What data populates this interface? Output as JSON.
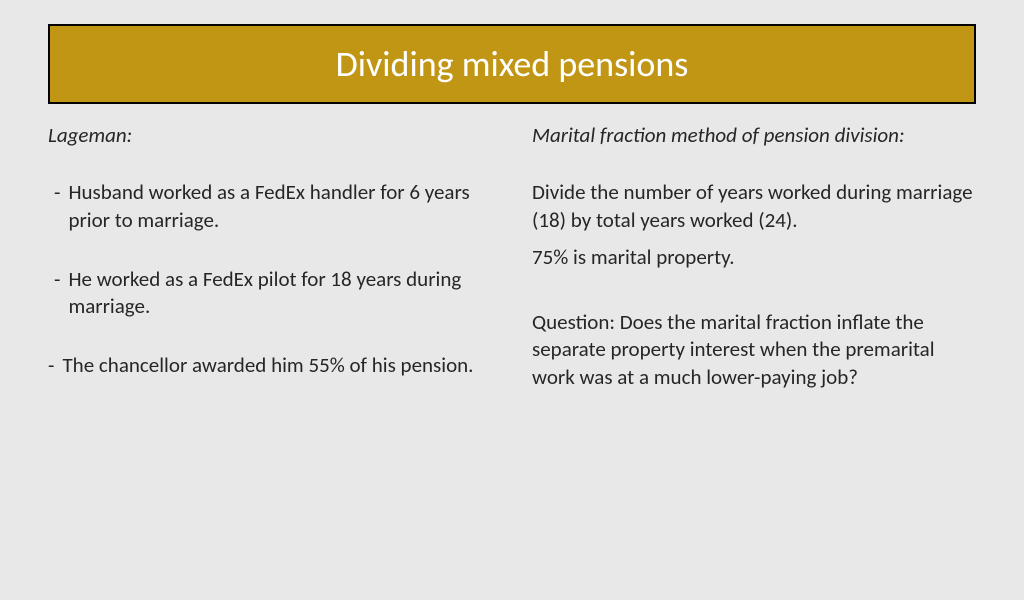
{
  "title": "Dividing mixed pensions",
  "left": {
    "heading": "Lageman:",
    "items": [
      "Husband worked as a FedEx handler for 6 years prior to marriage.",
      "He worked as a FedEx pilot for 18 years during marriage.",
      "The chancellor awarded him 55% of his pension."
    ]
  },
  "right": {
    "heading": "Marital fraction method of pension division:",
    "para1": "Divide the number of years worked during marriage (18) by total years worked (24).",
    "para2": "75% is marital property.",
    "para3": "Question: Does the marital fraction inflate the separate property interest when the premarital work was at a much lower-paying job?"
  },
  "colors": {
    "title_bg": "#c19615",
    "title_border": "#000000",
    "title_text": "#ffffff",
    "page_bg": "#e8e8e8",
    "body_text": "#262626"
  }
}
